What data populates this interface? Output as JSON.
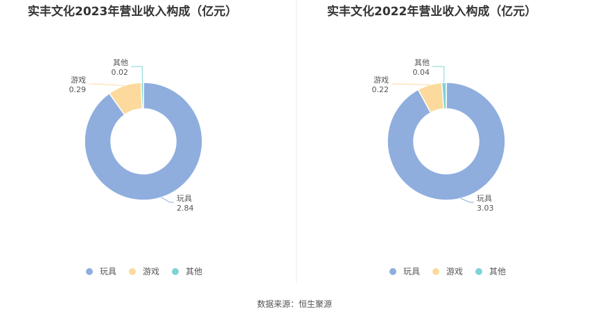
{
  "chart_data": [
    {
      "type": "pie",
      "title": "实丰文化2023年营业收入构成（亿元）",
      "slices": [
        {
          "label": "玩具",
          "value": 2.84,
          "color": "#8faede"
        },
        {
          "label": "游戏",
          "value": 0.29,
          "color": "#fcd99c"
        },
        {
          "label": "其他",
          "value": 0.02,
          "color": "#7fd3d6"
        }
      ],
      "legend": {
        "position": "bottom"
      }
    },
    {
      "type": "pie",
      "title": "实丰文化2022年营业收入构成（亿元）",
      "slices": [
        {
          "label": "玩具",
          "value": 3.03,
          "color": "#8faede"
        },
        {
          "label": "游戏",
          "value": 0.22,
          "color": "#fcd99c"
        },
        {
          "label": "其他",
          "value": 0.04,
          "color": "#7fd3d6"
        }
      ],
      "legend": {
        "position": "bottom"
      }
    }
  ],
  "footer": {
    "source": "数据来源：恒生聚源"
  }
}
